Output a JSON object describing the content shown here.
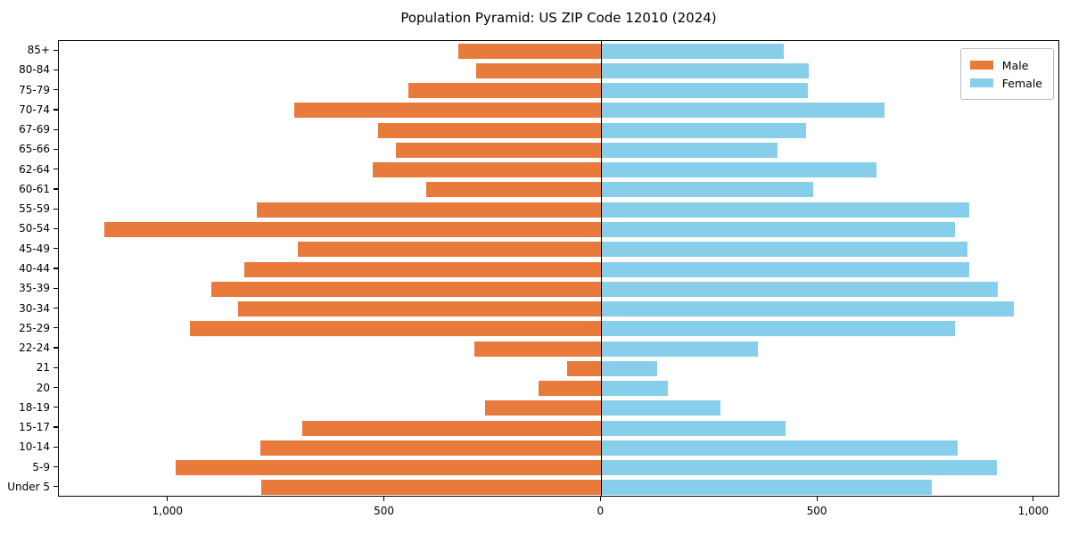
{
  "chart_data": {
    "type": "bar",
    "orientation": "horizontal",
    "variant": "population-pyramid",
    "title": "Population Pyramid: US ZIP Code 12010 (2024)",
    "categories": [
      "85+",
      "80-84",
      "75-79",
      "70-74",
      "67-69",
      "65-66",
      "62-64",
      "60-61",
      "55-59",
      "50-54",
      "45-49",
      "40-44",
      "35-39",
      "30-34",
      "25-29",
      "22-24",
      "21",
      "20",
      "18-19",
      "15-17",
      "10-14",
      "5-9",
      "Under 5"
    ],
    "series": [
      {
        "name": "Male",
        "side": "left",
        "color": "#e87a3c",
        "values": [
          330,
          290,
          445,
          710,
          515,
          475,
          528,
          405,
          795,
          1148,
          700,
          825,
          900,
          840,
          950,
          293,
          78,
          144,
          268,
          690,
          788,
          983,
          786
        ]
      },
      {
        "name": "Female",
        "side": "right",
        "color": "#87ceeb",
        "values": [
          422,
          480,
          478,
          655,
          472,
          408,
          635,
          490,
          850,
          818,
          845,
          850,
          915,
          952,
          818,
          362,
          130,
          154,
          275,
          426,
          823,
          914,
          763
        ]
      }
    ],
    "x_axis": {
      "tick_values": [
        -1000,
        -500,
        0,
        500,
        1000
      ],
      "tick_labels": [
        "1,000",
        "500",
        "0",
        "500",
        "1,000"
      ],
      "xlim": [
        -1253,
        1060
      ]
    },
    "legend_position": "upper right",
    "grid": false
  },
  "colors": {
    "male": "#e87a3c",
    "female": "#87ceeb",
    "axis": "#000000",
    "legend_border": "#bfbfbf",
    "background": "#ffffff"
  }
}
